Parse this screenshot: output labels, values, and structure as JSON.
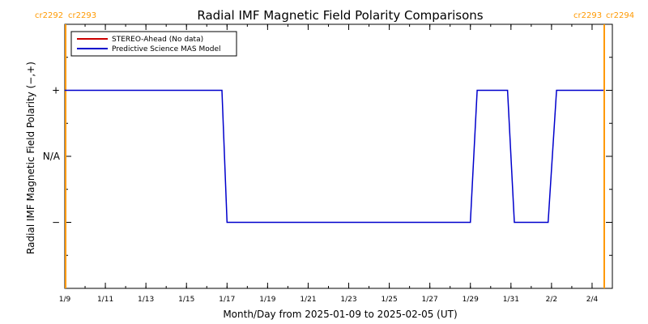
{
  "chart_data": {
    "type": "line",
    "title": "Radial IMF Magnetic Field Polarity Comparisons",
    "xlabel": "Month/Day from 2025-01-09 to 2025-02-05 (UT)",
    "ylabel": "Radial IMF Magnetic Field Polarity (−,+)",
    "x_range": [
      "2025-01-09",
      "2025-02-05"
    ],
    "x_ticks": [
      "1/9",
      "1/11",
      "1/13",
      "1/15",
      "1/17",
      "1/19",
      "1/21",
      "1/23",
      "1/25",
      "1/27",
      "1/29",
      "1/31",
      "2/2",
      "2/4"
    ],
    "y_ticks": [
      "+",
      "N/A",
      "−"
    ],
    "y_levels": {
      "+": 1,
      "N/A": 0,
      "−": -1
    },
    "ylim": [
      -2,
      2
    ],
    "carrington_left": [
      "cr2292",
      "cr2293"
    ],
    "carrington_right": [
      "cr2293",
      "cr2294"
    ],
    "carrington_boundaries": [
      "2025-01-09",
      "2025-02-05"
    ],
    "legend_position": "top-left",
    "series": [
      {
        "name": "STEREO-Ahead (No data)",
        "color": "#cc0000",
        "x": [],
        "y": []
      },
      {
        "name": "Predictive Science MAS Model",
        "color": "#0000cc",
        "x": [
          "2025-01-09",
          "2025-01-16 18:00",
          "2025-01-17 00:00",
          "2025-01-29 00:00",
          "2025-01-29 08:00",
          "2025-01-30 20:00",
          "2025-01-31 04:00",
          "2025-02-01 20:00",
          "2025-02-02 06:00",
          "2025-02-05"
        ],
        "y": [
          1,
          1,
          -1,
          -1,
          1,
          1,
          -1,
          -1,
          1,
          1
        ]
      }
    ],
    "colors": {
      "axis": "#000000",
      "carrington": "#ff9900"
    }
  }
}
